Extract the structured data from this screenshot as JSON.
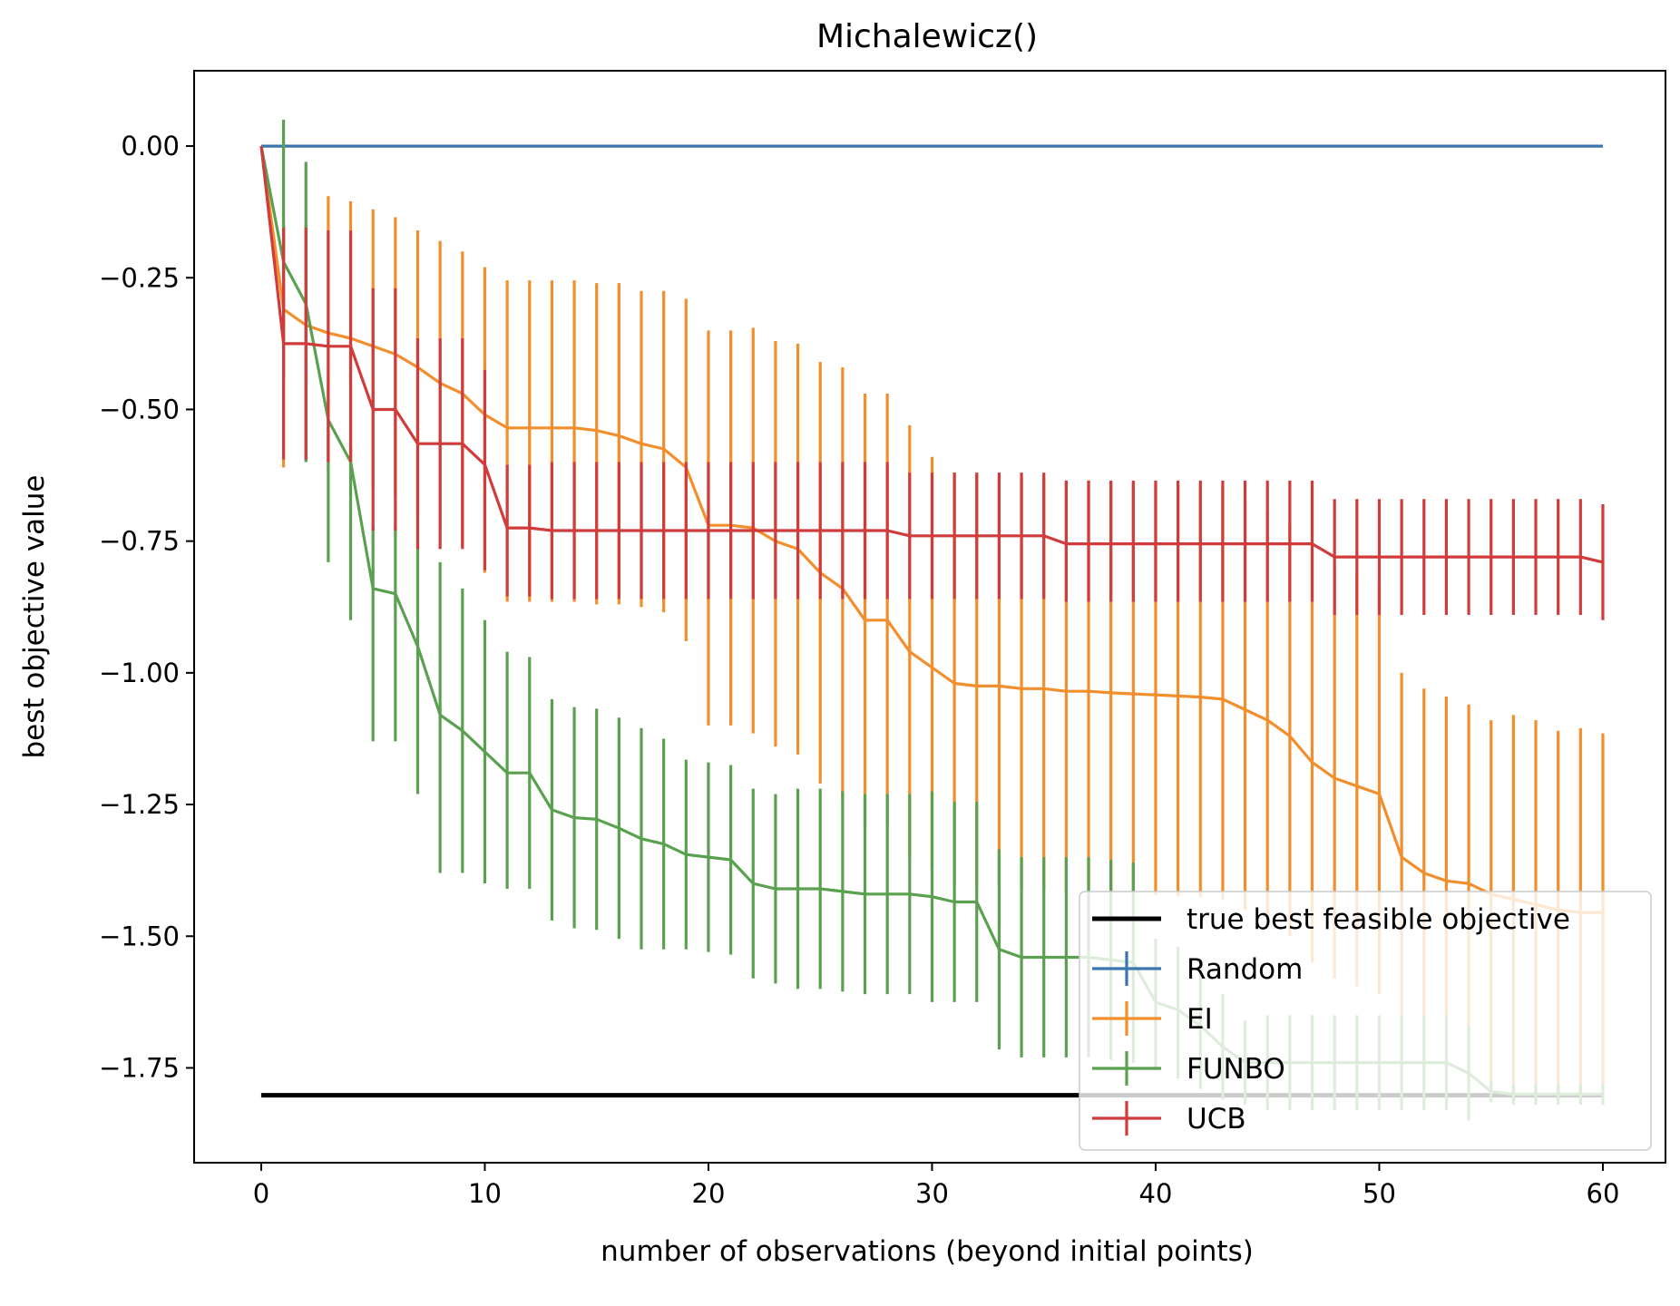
{
  "chart_data": {
    "type": "line",
    "title": "Michalewicz()",
    "xlabel": "number of observations (beyond initial points)",
    "ylabel": "best objective value",
    "xlim": [
      -3,
      62.8
    ],
    "ylim": [
      -1.93,
      0.143
    ],
    "xticks": [
      0,
      10,
      20,
      30,
      40,
      50,
      60
    ],
    "xtick_labels": [
      "0",
      "10",
      "20",
      "30",
      "40",
      "50",
      "60"
    ],
    "yticks": [
      0.0,
      -0.25,
      -0.5,
      -0.75,
      -1.0,
      -1.25,
      -1.5,
      -1.75
    ],
    "ytick_labels": [
      "0.00",
      "−0.25",
      "−0.50",
      "−0.75",
      "−1.00",
      "−1.25",
      "−1.50",
      "−1.75"
    ],
    "grid": false,
    "legend_position": "lower-right",
    "reference_line": {
      "name": "true best feasible objective",
      "value": -1.802,
      "x_range": [
        0,
        60
      ],
      "color": "#000000"
    },
    "series": [
      {
        "name": "Random",
        "color": "#3a75b0",
        "mean": [
          0,
          0,
          0,
          0,
          0,
          0,
          0,
          0,
          0,
          0,
          0,
          0,
          0,
          0,
          0,
          0,
          0,
          0,
          0,
          0,
          0,
          0,
          0,
          0,
          0,
          0,
          0,
          0,
          0,
          0,
          0,
          0,
          0,
          0,
          0,
          0,
          0,
          0,
          0,
          0,
          0,
          0,
          0,
          0,
          0,
          0,
          0,
          0,
          0,
          0,
          0,
          0,
          0,
          0,
          0,
          0,
          0,
          0,
          0,
          0,
          0
        ],
        "err_lower": [
          0,
          0,
          0,
          0,
          0,
          0,
          0,
          0,
          0,
          0,
          0,
          0,
          0,
          0,
          0,
          0,
          0,
          0,
          0,
          0,
          0,
          0,
          0,
          0,
          0,
          0,
          0,
          0,
          0,
          0,
          0,
          0,
          0,
          0,
          0,
          0,
          0,
          0,
          0,
          0,
          0,
          0,
          0,
          0,
          0,
          0,
          0,
          0,
          0,
          0,
          0,
          0,
          0,
          0,
          0,
          0,
          0,
          0,
          0,
          0,
          0
        ],
        "err_upper": [
          0,
          0,
          0,
          0,
          0,
          0,
          0,
          0,
          0,
          0,
          0,
          0,
          0,
          0,
          0,
          0,
          0,
          0,
          0,
          0,
          0,
          0,
          0,
          0,
          0,
          0,
          0,
          0,
          0,
          0,
          0,
          0,
          0,
          0,
          0,
          0,
          0,
          0,
          0,
          0,
          0,
          0,
          0,
          0,
          0,
          0,
          0,
          0,
          0,
          0,
          0,
          0,
          0,
          0,
          0,
          0,
          0,
          0,
          0,
          0,
          0
        ]
      },
      {
        "name": "EI",
        "color": "#f28e2b",
        "mean": [
          0,
          -0.31,
          -0.34,
          -0.355,
          -0.365,
          -0.38,
          -0.395,
          -0.42,
          -0.45,
          -0.47,
          -0.51,
          -0.535,
          -0.535,
          -0.535,
          -0.535,
          -0.54,
          -0.55,
          -0.565,
          -0.575,
          -0.61,
          -0.72,
          -0.72,
          -0.725,
          -0.75,
          -0.765,
          -0.81,
          -0.84,
          -0.9,
          -0.9,
          -0.96,
          -0.99,
          -1.02,
          -1.025,
          -1.025,
          -1.03,
          -1.03,
          -1.035,
          -1.035,
          -1.038,
          -1.04,
          -1.042,
          -1.044,
          -1.046,
          -1.05,
          -1.07,
          -1.09,
          -1.12,
          -1.17,
          -1.2,
          -1.215,
          -1.23,
          -1.35,
          -1.38,
          -1.395,
          -1.4,
          -1.42,
          -1.43,
          -1.44,
          -1.45,
          -1.455,
          -1.455
        ],
        "err_lower": [
          0,
          0.3,
          0.26,
          0.26,
          0.26,
          0.27,
          0.27,
          0.28,
          0.28,
          0.29,
          0.3,
          0.33,
          0.33,
          0.33,
          0.33,
          0.33,
          0.32,
          0.31,
          0.31,
          0.33,
          0.38,
          0.38,
          0.39,
          0.39,
          0.39,
          0.4,
          0.4,
          0.4,
          0.39,
          0.39,
          0.38,
          0.38,
          0.38,
          0.38,
          0.38,
          0.38,
          0.38,
          0.38,
          0.38,
          0.38,
          0.38,
          0.38,
          0.38,
          0.38,
          0.38,
          0.38,
          0.38,
          0.38,
          0.38,
          0.38,
          0.38,
          0.38,
          0.38,
          0.38,
          0.38,
          0.38,
          0.37,
          0.37,
          0.36,
          0.35,
          0.35
        ],
        "err_upper": [
          0,
          0.16,
          0.19,
          0.26,
          0.26,
          0.26,
          0.26,
          0.26,
          0.27,
          0.27,
          0.28,
          0.28,
          0.28,
          0.28,
          0.28,
          0.28,
          0.29,
          0.29,
          0.3,
          0.32,
          0.37,
          0.37,
          0.38,
          0.38,
          0.39,
          0.4,
          0.42,
          0.43,
          0.43,
          0.43,
          0.4,
          0.4,
          0.4,
          0.4,
          0.4,
          0.4,
          0.4,
          0.4,
          0.4,
          0.4,
          0.4,
          0.4,
          0.4,
          0.4,
          0.4,
          0.4,
          0.4,
          0.4,
          0.4,
          0.4,
          0.4,
          0.35,
          0.35,
          0.35,
          0.34,
          0.33,
          0.35,
          0.35,
          0.34,
          0.35,
          0.34
        ]
      },
      {
        "name": "FUNBO",
        "color": "#59a14f",
        "mean": [
          0,
          -0.22,
          -0.3,
          -0.52,
          -0.6,
          -0.84,
          -0.85,
          -0.95,
          -1.08,
          -1.11,
          -1.15,
          -1.19,
          -1.19,
          -1.26,
          -1.275,
          -1.278,
          -1.295,
          -1.315,
          -1.325,
          -1.345,
          -1.35,
          -1.355,
          -1.4,
          -1.41,
          -1.41,
          -1.41,
          -1.415,
          -1.42,
          -1.42,
          -1.42,
          -1.425,
          -1.435,
          -1.435,
          -1.525,
          -1.54,
          -1.54,
          -1.54,
          -1.54,
          -1.545,
          -1.55,
          -1.625,
          -1.64,
          -1.67,
          -1.71,
          -1.74,
          -1.74,
          -1.74,
          -1.74,
          -1.74,
          -1.74,
          -1.74,
          -1.74,
          -1.74,
          -1.74,
          -1.76,
          -1.795,
          -1.8,
          -1.8,
          -1.8,
          -1.8,
          -1.8
        ],
        "err_lower": [
          0,
          0.22,
          0.3,
          0.27,
          0.3,
          0.29,
          0.28,
          0.28,
          0.3,
          0.27,
          0.25,
          0.22,
          0.22,
          0.21,
          0.21,
          0.21,
          0.21,
          0.21,
          0.2,
          0.18,
          0.18,
          0.18,
          0.18,
          0.18,
          0.19,
          0.19,
          0.19,
          0.19,
          0.19,
          0.19,
          0.2,
          0.19,
          0.19,
          0.19,
          0.19,
          0.19,
          0.19,
          0.19,
          0.19,
          0.19,
          0.13,
          0.13,
          0.12,
          0.1,
          0.08,
          0.09,
          0.09,
          0.09,
          0.09,
          0.09,
          0.09,
          0.09,
          0.09,
          0.09,
          0.09,
          0.02,
          0.02,
          0.02,
          0.02,
          0.02,
          0.02
        ],
        "err_upper": [
          0,
          0.27,
          0.27,
          0.08,
          0.03,
          0.12,
          0.13,
          0.19,
          0.29,
          0.27,
          0.25,
          0.23,
          0.22,
          0.21,
          0.21,
          0.21,
          0.21,
          0.21,
          0.2,
          0.18,
          0.18,
          0.18,
          0.18,
          0.18,
          0.19,
          0.19,
          0.19,
          0.19,
          0.19,
          0.19,
          0.2,
          0.19,
          0.19,
          0.19,
          0.19,
          0.19,
          0.19,
          0.19,
          0.19,
          0.19,
          0.12,
          0.12,
          0.12,
          0.1,
          0.08,
          0.09,
          0.09,
          0.09,
          0.09,
          0.09,
          0.09,
          0.09,
          0.09,
          0.09,
          0.09,
          0.02,
          0.02,
          0.02,
          0.02,
          0.02,
          0.02
        ]
      },
      {
        "name": "UCB",
        "color": "#d13b3b",
        "mean": [
          0,
          -0.375,
          -0.375,
          -0.38,
          -0.38,
          -0.5,
          -0.5,
          -0.565,
          -0.565,
          -0.565,
          -0.605,
          -0.725,
          -0.725,
          -0.73,
          -0.73,
          -0.73,
          -0.73,
          -0.73,
          -0.73,
          -0.73,
          -0.73,
          -0.73,
          -0.73,
          -0.73,
          -0.73,
          -0.73,
          -0.73,
          -0.73,
          -0.73,
          -0.74,
          -0.74,
          -0.74,
          -0.74,
          -0.74,
          -0.74,
          -0.74,
          -0.755,
          -0.755,
          -0.755,
          -0.755,
          -0.755,
          -0.755,
          -0.755,
          -0.755,
          -0.755,
          -0.755,
          -0.755,
          -0.755,
          -0.78,
          -0.78,
          -0.78,
          -0.78,
          -0.78,
          -0.78,
          -0.78,
          -0.78,
          -0.78,
          -0.78,
          -0.78,
          -0.78,
          -0.79
        ],
        "err_lower": [
          0,
          0.22,
          0.22,
          0.22,
          0.22,
          0.23,
          0.23,
          0.2,
          0.2,
          0.2,
          0.2,
          0.13,
          0.13,
          0.13,
          0.13,
          0.13,
          0.13,
          0.13,
          0.13,
          0.13,
          0.13,
          0.13,
          0.13,
          0.13,
          0.13,
          0.13,
          0.13,
          0.13,
          0.13,
          0.12,
          0.12,
          0.12,
          0.12,
          0.12,
          0.12,
          0.12,
          0.11,
          0.11,
          0.11,
          0.11,
          0.11,
          0.11,
          0.11,
          0.11,
          0.11,
          0.11,
          0.11,
          0.11,
          0.11,
          0.11,
          0.11,
          0.11,
          0.11,
          0.11,
          0.11,
          0.11,
          0.11,
          0.11,
          0.11,
          0.11,
          0.11
        ],
        "err_upper": [
          0,
          0.22,
          0.22,
          0.22,
          0.22,
          0.23,
          0.23,
          0.2,
          0.2,
          0.2,
          0.18,
          0.12,
          0.12,
          0.13,
          0.13,
          0.13,
          0.13,
          0.13,
          0.13,
          0.13,
          0.13,
          0.13,
          0.13,
          0.13,
          0.13,
          0.13,
          0.13,
          0.13,
          0.13,
          0.12,
          0.12,
          0.12,
          0.12,
          0.12,
          0.12,
          0.12,
          0.12,
          0.12,
          0.12,
          0.12,
          0.12,
          0.12,
          0.12,
          0.12,
          0.12,
          0.12,
          0.12,
          0.12,
          0.11,
          0.11,
          0.11,
          0.11,
          0.11,
          0.11,
          0.11,
          0.11,
          0.11,
          0.11,
          0.11,
          0.11,
          0.11
        ]
      }
    ],
    "legend": [
      {
        "label": "true best feasible objective",
        "color": "#000000",
        "kind": "line"
      },
      {
        "label": "Random",
        "color": "#3a75b0",
        "kind": "errorbar"
      },
      {
        "label": "EI",
        "color": "#f28e2b",
        "kind": "errorbar"
      },
      {
        "label": "FUNBO",
        "color": "#59a14f",
        "kind": "errorbar"
      },
      {
        "label": "UCB",
        "color": "#d13b3b",
        "kind": "errorbar"
      }
    ]
  }
}
